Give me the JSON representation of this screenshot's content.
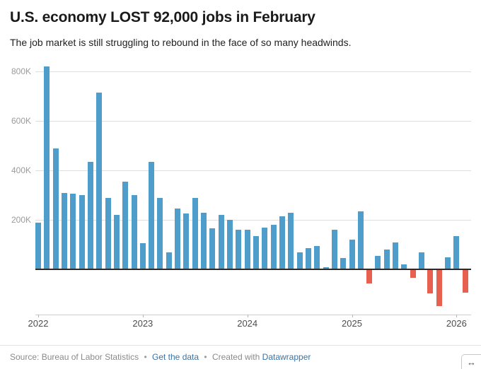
{
  "chart_data": {
    "type": "bar",
    "title": "U.S. economy LOST 92,000 jobs in February",
    "subtitle": "The job market is still struggling to rebound in the face of so many headwinds.",
    "unit": "K jobs (monthly change, thousands)",
    "x": [
      "Jan 2022",
      "Feb 2022",
      "Mar 2022",
      "Apr 2022",
      "May 2022",
      "Jun 2022",
      "Jul 2022",
      "Aug 2022",
      "Sep 2022",
      "Oct 2022",
      "Nov 2022",
      "Dec 2022",
      "Jan 2023",
      "Feb 2023",
      "Mar 2023",
      "Apr 2023",
      "May 2023",
      "Jun 2023",
      "Jul 2023",
      "Aug 2023",
      "Sep 2023",
      "Oct 2023",
      "Nov 2023",
      "Dec 2023",
      "Jan 2024",
      "Feb 2024",
      "Mar 2024",
      "Apr 2024",
      "May 2024",
      "Jun 2024",
      "Jul 2024",
      "Aug 2024",
      "Sep 2024",
      "Oct 2024",
      "Nov 2024",
      "Dec 2024",
      "Jan 2025",
      "Feb 2025",
      "Mar 2025",
      "Apr 2025",
      "May 2025",
      "Jun 2025",
      "Jul 2025",
      "Aug 2025",
      "Sep 2025",
      "Oct 2025",
      "Nov 2025",
      "Dec 2025",
      "Jan 2026",
      "Feb 2026"
    ],
    "values": [
      190,
      820,
      490,
      310,
      305,
      300,
      435,
      715,
      290,
      220,
      355,
      300,
      105,
      435,
      290,
      70,
      245,
      225,
      290,
      230,
      165,
      220,
      200,
      160,
      160,
      135,
      170,
      180,
      215,
      230,
      70,
      85,
      95,
      10,
      160,
      45,
      120,
      235,
      -55,
      55,
      80,
      110,
      20,
      -30,
      70,
      -95,
      -145,
      50,
      135,
      -92
    ],
    "y_ticks": [
      {
        "value": 200,
        "label": "200K"
      },
      {
        "value": 400,
        "label": "400K"
      },
      {
        "value": 600,
        "label": "600K"
      },
      {
        "value": 800,
        "label": "800K"
      }
    ],
    "x_ticks": [
      {
        "index": 0,
        "label": "2022"
      },
      {
        "index": 12,
        "label": "2023"
      },
      {
        "index": 24,
        "label": "2024"
      },
      {
        "index": 36,
        "label": "2025"
      },
      {
        "index": 48,
        "label": "2026"
      }
    ],
    "ylim": [
      -200,
      850
    ],
    "grid": "horizontal",
    "legend": "none",
    "colors": {
      "positive": "#4f9dca",
      "negative": "#e8604f"
    }
  },
  "footer": {
    "source_label": "Source: Bureau of Labor Statistics",
    "separator": "•",
    "get_data_label": "Get the data",
    "created_with_label": "Created with",
    "datawrapper_label": "Datawrapper",
    "link_color": "#3a72a4",
    "resize_icon": "↔"
  }
}
